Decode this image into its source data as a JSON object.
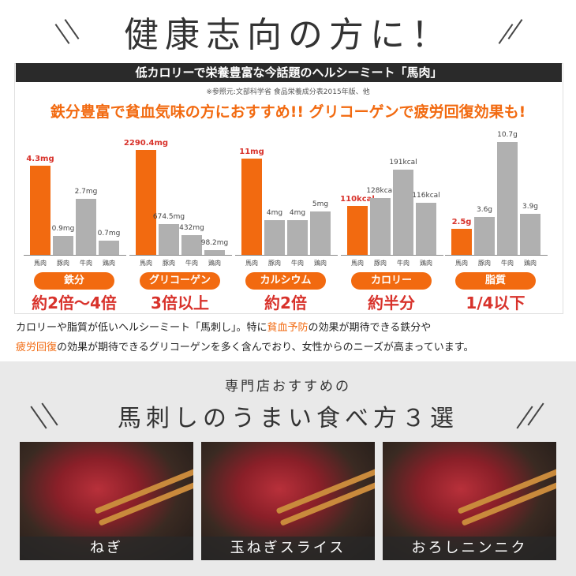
{
  "header": {
    "title": "健康志向の方に！"
  },
  "banner": {
    "title": "低カロリーで栄養豊富な今話題のヘルシーミート「馬肉」",
    "reference": "※参照元:文部科学省 食品栄養成分表2015年版、他",
    "headline": "鉄分豊富で貧血気味の方におすすめ!! グリコーゲンで疲労回復効果も!"
  },
  "colors": {
    "highlight": "#f26a10",
    "other": "#b0b0b0",
    "accent_text": "#d8322b"
  },
  "chart_data": [
    {
      "type": "bar",
      "categories": [
        "馬肉",
        "豚肉",
        "牛肉",
        "鶏肉"
      ],
      "values": [
        4.3,
        0.9,
        2.7,
        0.7
      ],
      "labels": [
        "4.3mg",
        "0.9mg",
        "2.7mg",
        "0.7mg"
      ],
      "name": "鉄分",
      "summary": "約2倍〜4倍"
    },
    {
      "type": "bar",
      "categories": [
        "馬肉",
        "豚肉",
        "牛肉",
        "鶏肉"
      ],
      "values": [
        2290.4,
        674.5,
        432,
        98.2
      ],
      "labels": [
        "2290.4mg",
        "674.5mg",
        "432mg",
        "98.2mg"
      ],
      "name": "グリコーゲン",
      "summary": "3倍以上"
    },
    {
      "type": "bar",
      "categories": [
        "馬肉",
        "豚肉",
        "牛肉",
        "鶏肉"
      ],
      "values": [
        11,
        4,
        4,
        5
      ],
      "labels": [
        "11mg",
        "4mg",
        "4mg",
        "5mg"
      ],
      "name": "カルシウム",
      "summary": "約2倍"
    },
    {
      "type": "bar",
      "categories": [
        "馬肉",
        "豚肉",
        "牛肉",
        "鶏肉"
      ],
      "values": [
        110,
        128,
        191,
        116
      ],
      "labels": [
        "110kcal",
        "128kcal",
        "191kcal",
        "116kcal"
      ],
      "name": "カロリー",
      "summary": "約半分"
    },
    {
      "type": "bar",
      "categories": [
        "馬肉",
        "豚肉",
        "牛肉",
        "鶏肉"
      ],
      "values": [
        2.5,
        3.6,
        10.7,
        3.9
      ],
      "labels": [
        "2.5g",
        "3.6g",
        "10.7g",
        "3.9g"
      ],
      "name": "脂質",
      "summary": "1/4以下"
    }
  ],
  "paragraph": {
    "p1": "カロリーや脂質が低いヘルシーミート「馬刺し」。特に",
    "h1": "貧血予防",
    "p2": "の効果が期待できる鉄分や",
    "h2": "疲労回復",
    "p3": "の効果が期待できるグリコーゲンを多く含んでおり、女性からのニーズが高まっています。"
  },
  "section2": {
    "subtitle": "専門店おすすめの",
    "title": "馬刺しのうまい食べ方３選",
    "photos": [
      {
        "caption": "ねぎ"
      },
      {
        "caption": "玉ねぎスライス"
      },
      {
        "caption": "おろしニンニク"
      }
    ]
  }
}
